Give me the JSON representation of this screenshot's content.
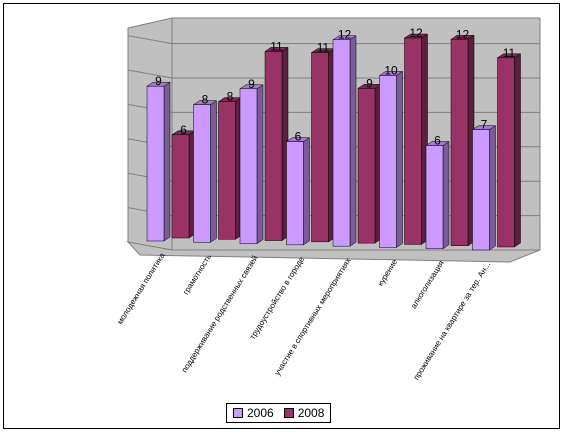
{
  "chart_data": {
    "type": "bar",
    "categories": [
      "молодежная политика",
      "грамотность",
      "поддерживание родственных связей",
      "трудоустройство в городе",
      "участие в спортивных мероприятиях",
      "курение",
      "алкоголизация",
      "проживание на квартире за тер. Ан..."
    ],
    "series": [
      {
        "name": "2006",
        "values": [
          9,
          8,
          9,
          6,
          12,
          10,
          6,
          7
        ],
        "color": "#cc99ff"
      },
      {
        "name": "2008",
        "values": [
          6,
          8,
          11,
          11,
          9,
          12,
          12,
          11
        ],
        "color": "#993366"
      }
    ],
    "ylim": [
      0,
      12
    ],
    "grid": true,
    "legend_position": "bottom"
  }
}
